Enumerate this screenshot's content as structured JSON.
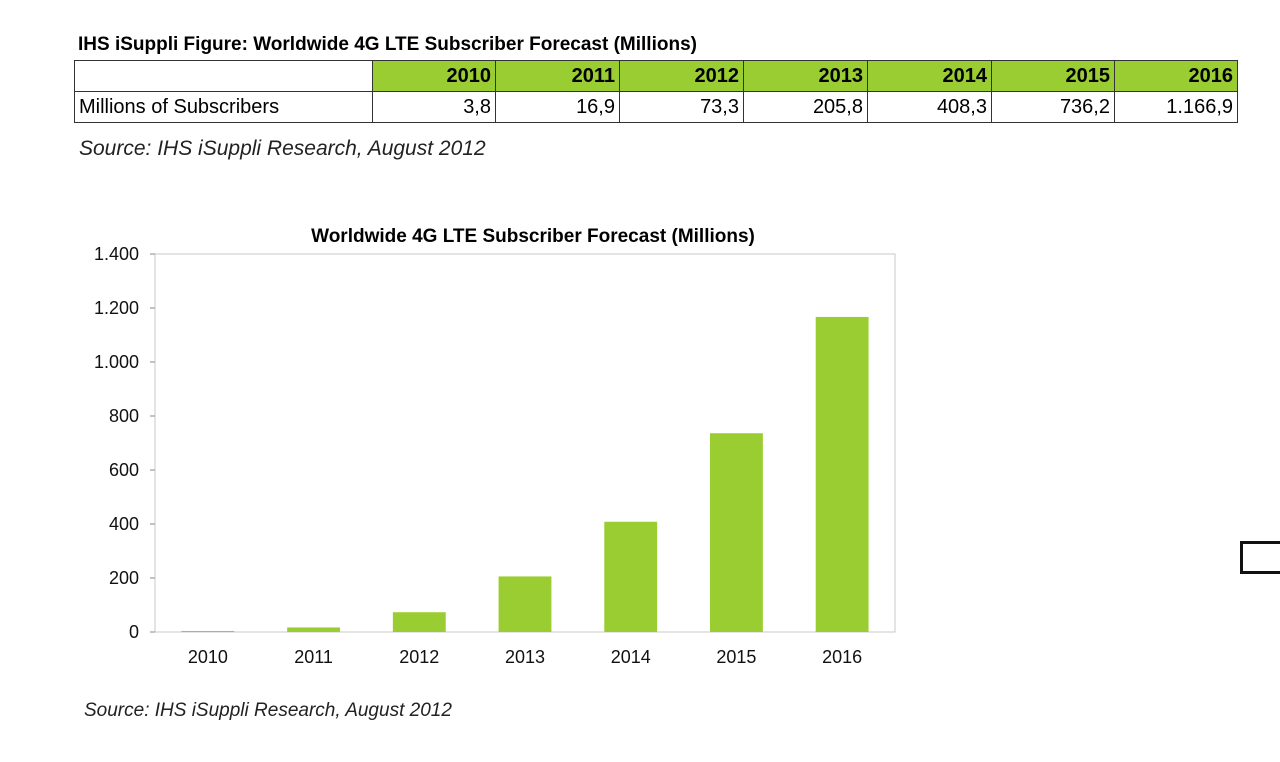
{
  "header": {
    "figure_title": "IHS iSuppli Figure: Worldwide 4G LTE Subscriber Forecast (Millions)",
    "source_text": "Source: IHS iSuppli Research, August 2012"
  },
  "table": {
    "row_label": "Millions of Subscribers",
    "years": [
      "2010",
      "2011",
      "2012",
      "2013",
      "2014",
      "2015",
      "2016"
    ],
    "values": [
      "3,8",
      "16,9",
      "73,3",
      "205,8",
      "408,3",
      "736,2",
      "1.166,9"
    ]
  },
  "chart_data": {
    "type": "bar",
    "title": "Worldwide 4G LTE Subscriber Forecast (Millions)",
    "categories": [
      "2010",
      "2011",
      "2012",
      "2013",
      "2014",
      "2015",
      "2016"
    ],
    "values": [
      3.8,
      16.9,
      73.3,
      205.8,
      408.3,
      736.2,
      1166.9
    ],
    "ylim": [
      0,
      1400
    ],
    "yticks": [
      0,
      200,
      400,
      600,
      800,
      1000,
      1200,
      1400
    ],
    "ytick_labels": [
      "0",
      "200",
      "400",
      "600",
      "800",
      "1.000",
      "1.200",
      "1.400"
    ],
    "xlabel": "",
    "ylabel": "",
    "grid": false,
    "bar_color": "#9acd32",
    "source": "Source: IHS iSuppli Research, August 2012"
  }
}
